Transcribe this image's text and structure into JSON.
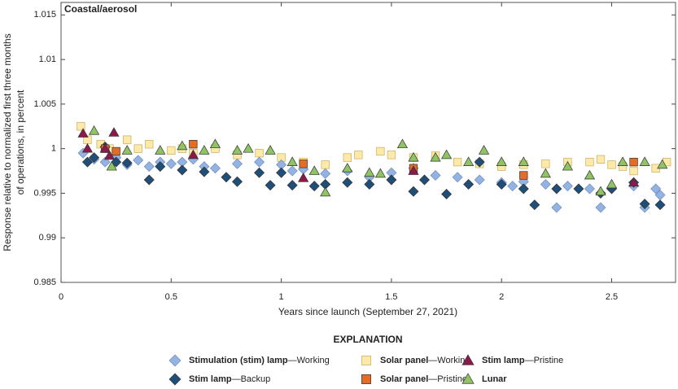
{
  "chart_data": {
    "type": "scatter",
    "title": "Coastal/aerosol",
    "x_label": "Years since launch (September 27, 2021)",
    "y_label": [
      "Response relative to normalized first three months",
      "of operations, in percent"
    ],
    "legend_title": "EXPLANATION",
    "xlim": [
      0,
      2.79
    ],
    "ylim": [
      0.985,
      1.0164
    ],
    "xticks": [
      0,
      0.5,
      1,
      1.5,
      2,
      2.5
    ],
    "yticks": [
      0.985,
      0.99,
      0.995,
      1,
      1.005,
      1.01,
      1.015
    ],
    "grid": false,
    "series": [
      {
        "name": "Stimulation (stim) lamp—Working",
        "color": "#94b3e0",
        "marker": "diamond",
        "x": [
          0.1,
          0.15,
          0.2,
          0.25,
          0.3,
          0.35,
          0.4,
          0.45,
          0.5,
          0.55,
          0.6,
          0.65,
          0.7,
          0.8,
          0.9,
          1.0,
          1.05,
          1.1,
          1.2,
          1.3,
          1.4,
          1.5,
          1.6,
          1.7,
          1.8,
          1.9,
          2.0,
          2.05,
          2.1,
          2.2,
          2.25,
          2.3,
          2.4,
          2.45,
          2.5,
          2.6,
          2.65,
          2.7,
          2.72
        ],
        "values": [
          0.9995,
          0.9988,
          0.9985,
          0.999,
          0.9982,
          0.9987,
          0.998,
          0.9985,
          0.9983,
          0.9985,
          0.9988,
          0.998,
          0.9978,
          0.9983,
          0.9985,
          0.9982,
          0.9975,
          0.9977,
          0.9972,
          0.9975,
          0.9968,
          0.9973,
          0.9978,
          0.997,
          0.9968,
          0.9965,
          0.9962,
          0.9958,
          0.9963,
          0.996,
          0.9934,
          0.9958,
          0.9955,
          0.9934,
          0.9956,
          0.9958,
          0.9934,
          0.9955,
          0.9948
        ]
      },
      {
        "name": "Solar panel—Working",
        "color": "#fde9a9",
        "marker": "square",
        "x": [
          0.09,
          0.12,
          0.18,
          0.22,
          0.3,
          0.35,
          0.4,
          0.5,
          0.55,
          0.6,
          0.7,
          0.8,
          0.9,
          1.0,
          1.1,
          1.2,
          1.3,
          1.35,
          1.45,
          1.5,
          1.6,
          1.7,
          1.8,
          1.9,
          2.0,
          2.1,
          2.2,
          2.3,
          2.4,
          2.45,
          2.5,
          2.55,
          2.6,
          2.7,
          2.75
        ],
        "values": [
          1.0025,
          1.001,
          1.0005,
          1.0,
          1.001,
          1.0,
          1.0005,
          0.9998,
          1.0,
          0.9995,
          1.0,
          0.9993,
          0.9995,
          0.999,
          0.9985,
          0.9982,
          0.999,
          0.9993,
          0.9997,
          0.9993,
          0.999,
          0.9992,
          0.9985,
          0.9983,
          0.998,
          0.9982,
          0.9983,
          0.9985,
          0.9985,
          0.9988,
          0.9982,
          0.998,
          0.9975,
          0.9978,
          0.9985
        ]
      },
      {
        "name": "Stim lamp—Pristine",
        "color": "#8b1a4a",
        "marker": "triangle",
        "x": [
          0.1,
          0.12,
          0.2,
          0.22,
          0.24,
          0.6,
          1.1,
          1.6,
          2.6
        ],
        "values": [
          1.0017,
          1.0,
          1.0,
          0.9992,
          1.0018,
          0.9993,
          0.9967,
          0.9975,
          0.9962
        ]
      },
      {
        "name": "Stim lamp—Backup",
        "color": "#1f4e79",
        "marker": "diamond",
        "x": [
          0.12,
          0.15,
          0.2,
          0.25,
          0.3,
          0.4,
          0.45,
          0.55,
          0.65,
          0.75,
          0.8,
          0.9,
          0.95,
          1.0,
          1.05,
          1.15,
          1.2,
          1.3,
          1.4,
          1.5,
          1.6,
          1.65,
          1.75,
          1.85,
          1.9,
          2.0,
          2.1,
          2.15,
          2.25,
          2.35,
          2.45,
          2.5,
          2.6,
          2.65,
          2.72
        ],
        "values": [
          0.9985,
          0.999,
          1.0002,
          0.9985,
          0.9984,
          0.9965,
          0.998,
          0.9976,
          0.9974,
          0.9968,
          0.9963,
          0.9973,
          0.9959,
          0.9973,
          0.9959,
          0.9958,
          0.996,
          0.9962,
          0.996,
          0.9965,
          0.9952,
          0.9965,
          0.9949,
          0.996,
          0.9985,
          0.996,
          0.9955,
          0.9937,
          0.9955,
          0.9955,
          0.995,
          0.9955,
          0.9962,
          0.9938,
          0.9937
        ]
      },
      {
        "name": "Solar panel—Pristine",
        "color": "#e46c25",
        "marker": "square",
        "x": [
          0.2,
          0.25,
          0.6,
          1.1,
          1.6,
          2.1,
          2.6
        ],
        "values": [
          1.0,
          0.9997,
          1.0005,
          0.9983,
          0.9978,
          0.997,
          0.9985
        ]
      },
      {
        "name": "Lunar",
        "color": "#8fc363",
        "marker": "triangle",
        "x": [
          0.15,
          0.23,
          0.3,
          0.45,
          0.55,
          0.65,
          0.7,
          0.8,
          0.85,
          0.95,
          1.05,
          1.15,
          1.2,
          1.3,
          1.4,
          1.45,
          1.55,
          1.6,
          1.7,
          1.75,
          1.85,
          1.92,
          2.0,
          2.1,
          2.2,
          2.3,
          2.4,
          2.45,
          2.5,
          2.55,
          2.65,
          2.73
        ],
        "values": [
          1.002,
          0.998,
          0.9998,
          0.9998,
          1.0003,
          0.9998,
          1.0005,
          0.9998,
          1.0,
          0.9998,
          0.9985,
          0.9975,
          0.9951,
          0.9978,
          0.9973,
          0.9972,
          1.0005,
          0.999,
          0.999,
          0.9993,
          0.9985,
          0.9998,
          0.9985,
          0.9985,
          0.9972,
          0.998,
          0.997,
          0.9952,
          0.996,
          0.9985,
          0.9985,
          0.9982
        ]
      }
    ]
  }
}
